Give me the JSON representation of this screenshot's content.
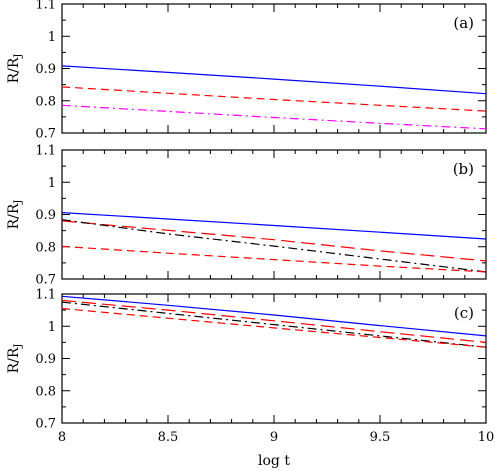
{
  "chart_data": [
    {
      "type": "line",
      "panel_label": "(a)",
      "ylabel": "R/R_J",
      "ylim": [
        0.7,
        1.1
      ],
      "xlim": [
        8,
        10
      ],
      "yticks": [
        "0.7",
        "0.8",
        "0.9",
        "1",
        "1.1"
      ],
      "series": [
        {
          "color": "#0000ff",
          "dash": "solid",
          "x": [
            8,
            8.5,
            9,
            9.5,
            10
          ],
          "y": [
            0.908,
            0.888,
            0.867,
            0.845,
            0.822
          ]
        },
        {
          "color": "#ff0000",
          "dash": "short-dash",
          "x": [
            8,
            8.5,
            9,
            9.5,
            10
          ],
          "y": [
            0.843,
            0.823,
            0.804,
            0.786,
            0.768
          ]
        },
        {
          "color": "#ff00ff",
          "dash": "dash-dot",
          "x": [
            8,
            8.5,
            9,
            9.5,
            10
          ],
          "y": [
            0.786,
            0.767,
            0.748,
            0.73,
            0.713
          ]
        }
      ]
    },
    {
      "type": "line",
      "panel_label": "(b)",
      "ylabel": "R/R_J",
      "ylim": [
        0.7,
        1.1
      ],
      "xlim": [
        8,
        10
      ],
      "yticks": [
        "0.7",
        "0.8",
        "0.9",
        "1",
        "1.1"
      ],
      "series": [
        {
          "color": "#0000ff",
          "dash": "solid",
          "x": [
            8,
            8.5,
            9,
            9.5,
            10
          ],
          "y": [
            0.906,
            0.886,
            0.866,
            0.845,
            0.824
          ]
        },
        {
          "color": "#ff0000",
          "dash": "long-dash",
          "x": [
            8,
            8.5,
            9,
            9.5,
            10
          ],
          "y": [
            0.88,
            0.851,
            0.822,
            0.787,
            0.756
          ]
        },
        {
          "color": "#000000",
          "dash": "dash-dot",
          "x": [
            8,
            8.5,
            9,
            9.5,
            10
          ],
          "y": [
            0.884,
            0.84,
            0.802,
            0.762,
            0.722
          ]
        },
        {
          "color": "#ff0000",
          "dash": "short-dash",
          "x": [
            8,
            8.5,
            9,
            9.5,
            10
          ],
          "y": [
            0.801,
            0.78,
            0.76,
            0.74,
            0.722
          ]
        }
      ]
    },
    {
      "type": "line",
      "panel_label": "(c)",
      "ylabel": "R/R_J",
      "xlabel": "log t",
      "ylim": [
        0.7,
        1.1
      ],
      "xlim": [
        8,
        10
      ],
      "xticks": [
        "8",
        "8.5",
        "9",
        "9.5",
        "10"
      ],
      "yticks": [
        "0.7",
        "0.8",
        "0.9",
        "1",
        "1.1"
      ],
      "series": [
        {
          "color": "#0000ff",
          "dash": "solid",
          "x": [
            8,
            8.5,
            9,
            9.5,
            10
          ],
          "y": [
            1.093,
            1.065,
            1.035,
            1.002,
            0.97
          ]
        },
        {
          "color": "#ff0000",
          "dash": "long-dash",
          "x": [
            8,
            8.5,
            9,
            9.5,
            10
          ],
          "y": [
            1.08,
            1.05,
            1.017,
            0.983,
            0.95
          ]
        },
        {
          "color": "#000000",
          "dash": "dash-dot",
          "x": [
            8,
            8.5,
            9,
            9.5,
            10
          ],
          "y": [
            1.075,
            1.04,
            1.005,
            0.97,
            0.935
          ]
        },
        {
          "color": "#ff0000",
          "dash": "short-dash",
          "x": [
            8,
            8.5,
            9,
            9.5,
            10
          ],
          "y": [
            1.055,
            1.025,
            0.995,
            0.965,
            0.935
          ]
        }
      ]
    }
  ]
}
